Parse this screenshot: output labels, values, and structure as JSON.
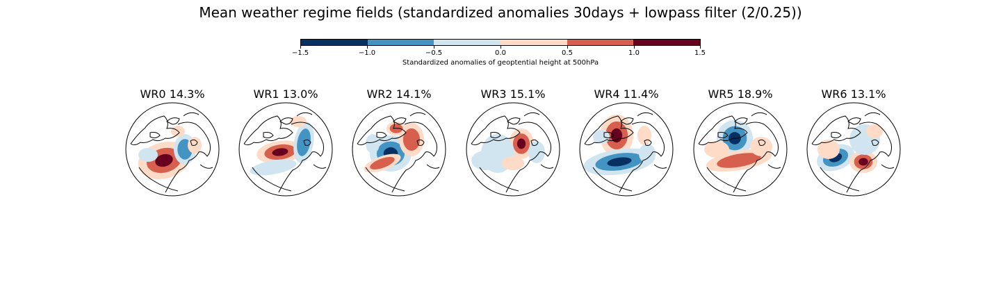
{
  "title": "Mean weather regime fields (standardized anomalies 30days + lowpass filter (2/0.25))",
  "colorbar": {
    "label": "Standardized anomalies of geoptential height at 500hPa",
    "ticks": [
      "−1.5",
      "−1.0",
      "−0.5",
      "0.0",
      "0.5",
      "1.0",
      "1.5"
    ],
    "levels": [
      -1.5,
      -1.0,
      -0.5,
      0.0,
      0.5,
      1.0,
      1.5
    ],
    "colors": [
      "#053061",
      "#4393c3",
      "#d1e5f0",
      "#fddbc7",
      "#d6604d",
      "#67001f"
    ]
  },
  "regimes": [
    {
      "title": "WR0 14.3%"
    },
    {
      "title": "WR1 13.0%"
    },
    {
      "title": "WR2 14.1%"
    },
    {
      "title": "WR3 15.1%"
    },
    {
      "title": "WR4 11.4%"
    },
    {
      "title": "WR5 18.9%"
    },
    {
      "title": "WR6 13.1%"
    }
  ]
}
